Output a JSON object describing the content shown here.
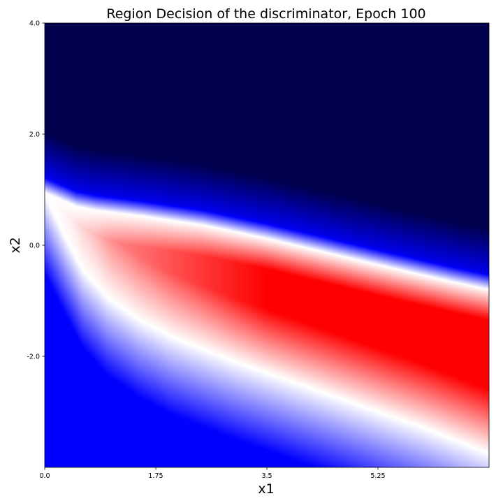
{
  "chart_data": {
    "type": "heatmap",
    "title": "Region Decision of the discriminator, Epoch 100",
    "xlabel": "x1",
    "ylabel": "x2",
    "xlim": [
      0.0,
      7.0
    ],
    "ylim": [
      -4.0,
      4.0
    ],
    "x_ticks": [
      {
        "value": 0.0,
        "label": "0.0"
      },
      {
        "value": 1.75,
        "label": "1.75"
      },
      {
        "value": 3.5,
        "label": "3.5"
      },
      {
        "value": 5.25,
        "label": "5.25"
      }
    ],
    "y_ticks": [
      {
        "value": 4.0,
        "label": "4.0"
      },
      {
        "value": 2.0,
        "label": "2.0"
      },
      {
        "value": 0.0,
        "label": "0.0"
      },
      {
        "value": -2.0,
        "label": "-2.0"
      }
    ],
    "colormap": {
      "name": "seismic",
      "stops": [
        "#00004c",
        "#0000ff",
        "#ffffff",
        "#ff0000",
        "#800000"
      ]
    },
    "boundaries": {
      "upper": {
        "x": [
          0.0,
          0.3,
          0.5,
          0.8,
          1.5,
          2.5,
          3.5,
          4.5,
          5.5,
          6.5,
          7.0
        ],
        "y": [
          0.95,
          0.8,
          0.7,
          0.63,
          0.53,
          0.36,
          0.12,
          -0.15,
          -0.42,
          -0.68,
          -0.8
        ]
      },
      "lower": {
        "x": [
          0.0,
          0.3,
          0.6,
          1.0,
          1.5,
          2.0,
          3.0,
          4.0,
          5.0,
          6.0,
          7.0
        ],
        "y": [
          0.9,
          0.2,
          -0.45,
          -0.95,
          -1.35,
          -1.65,
          -2.1,
          -2.5,
          -2.9,
          -3.3,
          -3.75
        ]
      }
    }
  }
}
